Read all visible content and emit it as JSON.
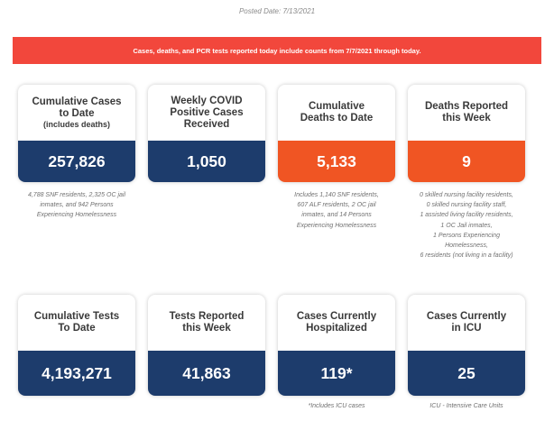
{
  "posted_date": "Posted Date: 7/13/2021",
  "banner": "Cases, deaths, and PCR tests reported today include counts from 7/7/2021 through today.",
  "cards": [
    {
      "title_lines": [
        "Cumulative Cases",
        "to Date"
      ],
      "subtitle": "(includes deaths)",
      "value": "257,826",
      "color": "#1d3c6c"
    },
    {
      "title_lines": [
        "Weekly COVID",
        "Positive Cases",
        "Received"
      ],
      "value": "1,050",
      "color": "#1d3c6c"
    },
    {
      "title_lines": [
        "Cumulative",
        "Deaths to Date"
      ],
      "value": "5,133",
      "color": "#f05523"
    },
    {
      "title_lines": [
        "Deaths Reported",
        "this Week"
      ],
      "value": "9",
      "color": "#f05523"
    },
    {
      "title_lines": [
        "Cumulative Tests",
        "To Date"
      ],
      "value": "4,193,271",
      "color": "#1d3c6c"
    },
    {
      "title_lines": [
        "Tests Reported",
        "this Week"
      ],
      "value": "41,863",
      "color": "#1d3c6c"
    },
    {
      "title_lines": [
        "Cases Currently",
        "Hospitalized"
      ],
      "value": "119*",
      "color": "#1d3c6c"
    },
    {
      "title_lines": [
        "Cases Currently",
        "in ICU"
      ],
      "value": "25",
      "color": "#1d3c6c"
    }
  ],
  "notes": {
    "cumulative_cases": [
      "4,788 SNF residents, 2,325 OC jail",
      "inmates, and 942 Persons",
      "Experiencing Homelessness"
    ],
    "cumulative_deaths": [
      "Includes 1,140 SNF residents,",
      "607 ALF residents, 2 OC jail",
      "inmates, and 14 Persons",
      "Experiencing Homelessness"
    ],
    "deaths_week": [
      "0 skilled nursing facility residents,",
      "0 skilled nursing facility staff,",
      "1 assisted living facility residents,",
      "1 OC Jail inmates,",
      "1 Persons Experiencing",
      "Homelessness,",
      "6 residents (not living in a facility)"
    ],
    "hospitalized": [
      "*Includes ICU cases"
    ],
    "icu": [
      "ICU - Intensive Care Units"
    ]
  }
}
